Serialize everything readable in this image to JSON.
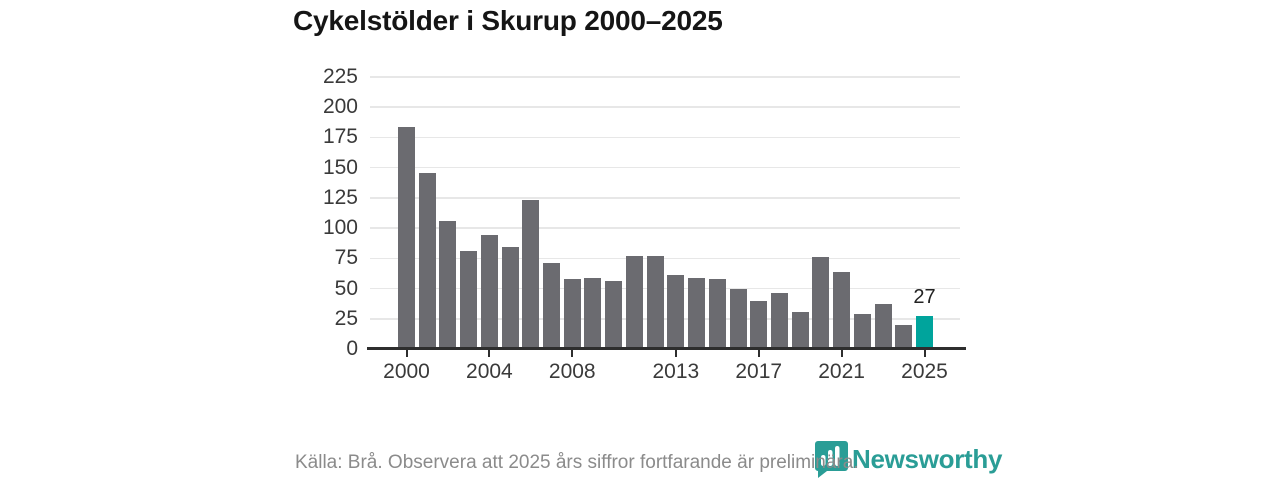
{
  "title": "Cykelstölder i Skurup 2000–2025",
  "footer": {
    "source_note": "Källa: Brå. Observera att 2025 års siffror fortfarande är preliminära.",
    "brand": "Newsworthy"
  },
  "colors": {
    "bar": "#6b6b70",
    "highlight": "#00a49c",
    "gridline": "#e7e7e7",
    "axis": "#2e2e2e",
    "tick_text": "#3a3a3a",
    "title_text": "#151515",
    "source_text": "#8b8b8b",
    "brand_teal": "#2a9d96"
  },
  "chart_data": {
    "type": "bar",
    "x": [
      2000,
      2001,
      2002,
      2003,
      2004,
      2005,
      2006,
      2007,
      2008,
      2009,
      2010,
      2011,
      2012,
      2013,
      2014,
      2015,
      2016,
      2017,
      2018,
      2019,
      2020,
      2021,
      2022,
      2023,
      2024,
      2025
    ],
    "values": [
      184,
      146,
      106,
      81,
      94,
      84,
      123,
      71,
      58,
      59,
      56,
      77,
      77,
      61,
      59,
      58,
      50,
      40,
      46,
      31,
      76,
      64,
      29,
      37,
      20,
      27
    ],
    "highlight_index": 25,
    "data_label": {
      "index": 25,
      "text": "27"
    },
    "title": "Cykelstölder i Skurup 2000–2025",
    "xlabel": "",
    "ylabel": "",
    "ylim": [
      0,
      225
    ],
    "y_ticks": [
      0,
      25,
      50,
      75,
      100,
      125,
      150,
      175,
      200,
      225
    ],
    "x_ticks": [
      2000,
      2004,
      2008,
      2013,
      2017,
      2021,
      2025
    ],
    "grid": "horizontal",
    "legend": "none"
  }
}
